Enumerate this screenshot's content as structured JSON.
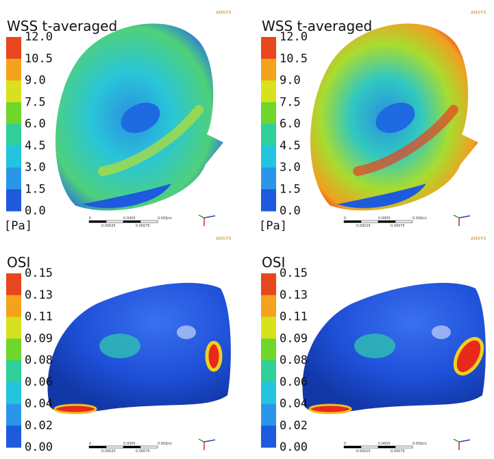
{
  "logo": "ANSYS",
  "panels": [
    {
      "title": "WSS t-averaged",
      "legend_ticks": [
        "12.0",
        "10.5",
        "9.0",
        "7.5",
        "6.0",
        "4.5",
        "3.0",
        "1.5",
        "0.0"
      ],
      "unit": "[Pa]",
      "scale_bar": {
        "top": [
          "0",
          "0.0005",
          "0.001",
          "(m)"
        ],
        "bottom": [
          "0.00025",
          "0.00075"
        ]
      }
    },
    {
      "title": "WSS t-averaged",
      "legend_ticks": [
        "12.0",
        "10.5",
        "9.0",
        "7.5",
        "6.0",
        "4.5",
        "3.0",
        "1.5",
        "0.0"
      ],
      "unit": "[Pa]",
      "scale_bar": {
        "top": [
          "0",
          "0.0005",
          "0.001",
          "(m)"
        ],
        "bottom": [
          "0.00025",
          "0.00075"
        ]
      }
    },
    {
      "title": "OSI",
      "legend_ticks": [
        "0.15",
        "0.13",
        "0.11",
        "0.09",
        "0.08",
        "0.06",
        "0.04",
        "0.02",
        "0.00"
      ],
      "scale_bar": {
        "top": [
          "0",
          "0.0005",
          "0.001",
          "(m)"
        ],
        "bottom": [
          "0.00025",
          "0.00075"
        ]
      }
    },
    {
      "title": "OSI",
      "legend_ticks": [
        "0.15",
        "0.13",
        "0.11",
        "0.09",
        "0.08",
        "0.06",
        "0.04",
        "0.02",
        "0.00"
      ],
      "scale_bar": {
        "top": [
          "0",
          "0.0005",
          "0.001",
          "(m)"
        ],
        "bottom": [
          "0.00025",
          "0.00075"
        ]
      }
    }
  ]
}
